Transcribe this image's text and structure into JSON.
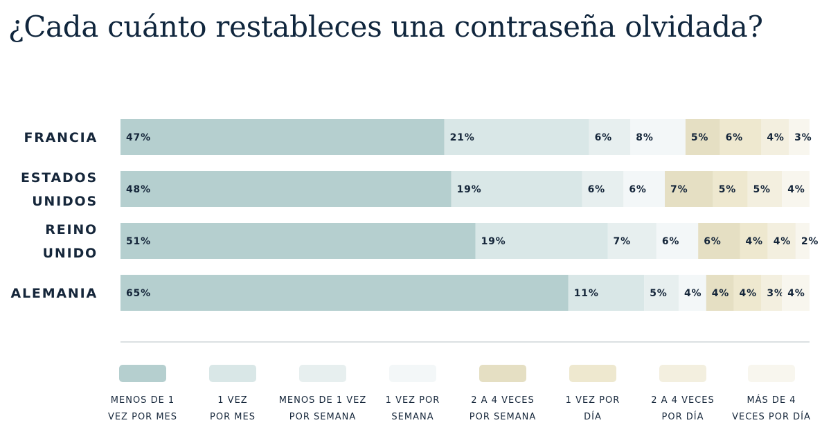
{
  "chart_data": {
    "type": "bar",
    "orientation": "horizontal",
    "stacked": true,
    "title": "¿Cada cuánto restableces una contraseña olvidada?",
    "categories": [
      [
        "FRANCIA"
      ],
      [
        "ESTADOS",
        "UNIDOS"
      ],
      [
        "REINO",
        "UNIDO"
      ],
      [
        "ALEMANIA"
      ]
    ],
    "series": [
      {
        "name": [
          "MENOS DE 1",
          "VEZ POR MES"
        ],
        "color": "#b5cfcf",
        "values": [
          47,
          48,
          51,
          65
        ]
      },
      {
        "name": [
          "1 VEZ",
          "POR MES"
        ],
        "color": "#d9e7e7",
        "values": [
          21,
          19,
          19,
          11
        ]
      },
      {
        "name": [
          "MENOS DE 1 VEZ",
          "POR SEMANA"
        ],
        "color": "#e7efef",
        "values": [
          6,
          6,
          7,
          5
        ]
      },
      {
        "name": [
          "1 VEZ POR",
          "SEMANA"
        ],
        "color": "#f3f7f8",
        "values": [
          8,
          6,
          6,
          4
        ]
      },
      {
        "name": [
          "2 A 4 VECES",
          "POR SEMANA"
        ],
        "color": "#e5dfc3",
        "values": [
          5,
          7,
          6,
          4
        ]
      },
      {
        "name": [
          "1 VEZ POR",
          "DÍA"
        ],
        "color": "#eee8cf",
        "values": [
          6,
          5,
          4,
          4
        ]
      },
      {
        "name": [
          "2 A 4 VECES",
          "POR DÍA"
        ],
        "color": "#f3efdf",
        "values": [
          4,
          5,
          4,
          3
        ]
      },
      {
        "name": [
          "MÁS DE 4",
          "VECES POR DÍA"
        ],
        "color": "#f8f6ee",
        "values": [
          3,
          4,
          2,
          4
        ]
      }
    ],
    "value_suffix": "%",
    "legend_position": "bottom",
    "grid": false
  }
}
